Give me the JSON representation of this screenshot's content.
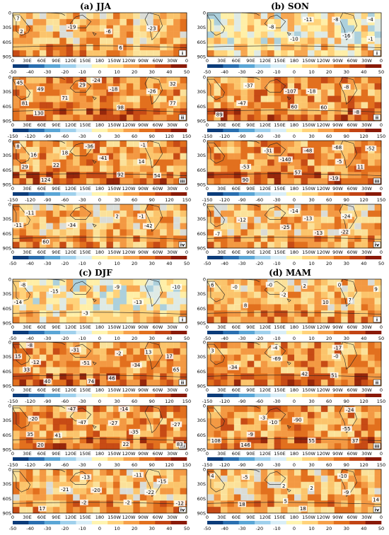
{
  "seasons": [
    {
      "label": "(a) JJA"
    },
    {
      "label": "(b) SON"
    },
    {
      "label": "(c) DJF"
    },
    {
      "label": "(d) MAM"
    }
  ],
  "lat_labels": [
    "0",
    "30S",
    "60S",
    "90S"
  ],
  "lon_labels": [
    "0",
    "30E",
    "60E",
    "90E",
    "120E",
    "150E",
    "180",
    "150W",
    "120W",
    "90W",
    "60W",
    "30W",
    "0"
  ],
  "colorbars": {
    "c50": [
      "-50",
      "-40",
      "-30",
      "-20",
      "-10",
      "0",
      "10",
      "20",
      "30",
      "40",
      "50"
    ],
    "c150": [
      "-150",
      "-120",
      "-90",
      "-60",
      "-30",
      "0",
      "30",
      "60",
      "90",
      "120",
      "150"
    ]
  },
  "colors": {
    "scale": [
      "#0b3c7a",
      "#2a6fb0",
      "#5aa6d6",
      "#9fd0ec",
      "#d9eef7",
      "#fff4b0",
      "#ffd27a",
      "#f6a04a",
      "#e2701e",
      "#c24414",
      "#8a1a08"
    ]
  },
  "panels": [
    {
      "season": 0,
      "row": 0,
      "roman": "i",
      "cbar": "c50",
      "values": [
        "7",
        "2",
        "-19",
        "-6",
        "-23",
        "6"
      ]
    },
    {
      "season": 0,
      "row": 1,
      "roman": "ii",
      "cbar": "c150",
      "values": [
        "45",
        "49",
        "29",
        "-24",
        "-18",
        "-26",
        "32",
        "81",
        "71",
        "130",
        "98",
        "77"
      ]
    },
    {
      "season": 0,
      "row": 2,
      "roman": "iii",
      "cbar": "c150",
      "values": [
        "8",
        "16",
        "18",
        "-36",
        "-41",
        "-1",
        "14",
        "29",
        "22",
        "124",
        "92",
        "54"
      ]
    },
    {
      "season": 0,
      "row": 3,
      "roman": "iv",
      "cbar": "c50",
      "values": [
        "-11",
        "-11",
        "-34",
        "2",
        "-1",
        "-42",
        "60"
      ]
    },
    {
      "season": 1,
      "row": 0,
      "roman": "i",
      "cbar": "c50",
      "values": [
        "-11",
        "-8",
        "-10",
        "-8",
        "-4",
        "-16",
        "-1"
      ]
    },
    {
      "season": 1,
      "row": 1,
      "roman": "ii",
      "cbar": "c150",
      "values": [
        "-37",
        "-107",
        "-18",
        "-8",
        "-47",
        "60",
        "60",
        "-8",
        "89"
      ]
    },
    {
      "season": 1,
      "row": 2,
      "roman": "iii",
      "cbar": "c150",
      "values": [
        "-31",
        "-140",
        "-48",
        "-68",
        "-52",
        "-5",
        "-53",
        "90",
        "57",
        "-19",
        "11"
      ]
    },
    {
      "season": 1,
      "row": 3,
      "roman": "iv",
      "cbar": "c50",
      "values": [
        "-14",
        "-13",
        "-12",
        "-25",
        "-24",
        "-7",
        "-13",
        "-22"
      ]
    },
    {
      "season": 2,
      "row": 0,
      "roman": "i",
      "cbar": "c50",
      "values": [
        "-8",
        "-14",
        "-15",
        "-9",
        "-10",
        "-3",
        "-13"
      ]
    },
    {
      "season": 2,
      "row": 1,
      "roman": "ii",
      "cbar": "c150",
      "values": [
        "-8",
        "15",
        "-12",
        "-31",
        "-2",
        "13",
        "17",
        "33",
        "-51",
        "-34",
        "65",
        "40",
        "74",
        "46"
      ]
    },
    {
      "season": 2,
      "row": 2,
      "roman": "iii",
      "cbar": "c150",
      "values": [
        "-47",
        "-14",
        "-20",
        "-47",
        "-27",
        "35",
        "41",
        "-35",
        "-27",
        "20",
        "22",
        "83"
      ]
    },
    {
      "season": 2,
      "row": 3,
      "roman": "iv",
      "cbar": "c50",
      "values": [
        "-13",
        "-11",
        "-21",
        "-20",
        "-15",
        "-22",
        "17",
        "-2",
        "-2",
        "-12"
      ]
    },
    {
      "season": 3,
      "row": 0,
      "roman": "i",
      "cbar": "c50",
      "values": [
        "6",
        "-0",
        "-0",
        "2",
        "0",
        "9",
        "-2",
        "8",
        "10",
        "7"
      ]
    },
    {
      "season": 3,
      "row": 1,
      "roman": "ii",
      "cbar": "c150",
      "values": [
        "3",
        "-4",
        "-17",
        "-69",
        "-0",
        "-34",
        "42",
        "51"
      ]
    },
    {
      "season": 3,
      "row": 2,
      "roman": "iii",
      "cbar": "c150",
      "values": [
        "-24",
        "-3",
        "-10",
        "-90",
        "-55",
        "-9",
        "108",
        "146",
        "55",
        "37"
      ]
    },
    {
      "season": 3,
      "row": 3,
      "roman": "iv",
      "cbar": "c50",
      "values": [
        "4",
        "-5",
        "2",
        "-10",
        "2",
        "-9",
        "18",
        "5",
        "18",
        "14"
      ]
    }
  ]
}
